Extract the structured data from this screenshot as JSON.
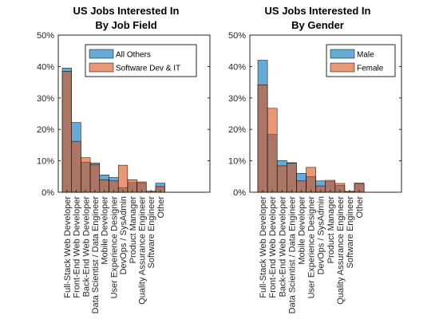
{
  "chart_data": [
    {
      "type": "bar",
      "title_line1": "US Jobs Interested In",
      "title_line2": "By Job Field",
      "categories": [
        "Full-Stack Web Developer",
        "Front-End Web Developer",
        "Back-End Web Developer",
        "Data Scientist / Data Engineer",
        "Mobile Developer",
        "User Experience Designer",
        "DevOps / SysAdmin",
        "Product Manager",
        "Quality Assurance Engineer",
        "Software Engineer",
        "Other"
      ],
      "ytick_labels": [
        "0%",
        "10%",
        "20%",
        "30%",
        "40%",
        "50%"
      ],
      "yticks": [
        0,
        10,
        20,
        30,
        40,
        50
      ],
      "ylim": [
        0,
        50
      ],
      "legend_position": "top-right",
      "series": [
        {
          "name": "All Others",
          "color": "#0072BD",
          "values": [
            39.5,
            22.2,
            9.6,
            9.3,
            5.5,
            4.7,
            1.5,
            3.1,
            3.0,
            0.3,
            2.9
          ]
        },
        {
          "name": "Software Dev & IT",
          "color": "#D95319",
          "values": [
            38.5,
            16.2,
            11.0,
            8.8,
            4.0,
            3.6,
            8.6,
            4.0,
            3.3,
            0.3,
            1.8
          ]
        }
      ]
    },
    {
      "type": "bar",
      "title_line1": "US Jobs Interested In",
      "title_line2": "By Gender",
      "categories": [
        "Full-Stack Web Developer",
        "Front-End Web Developer",
        "Back-End Web Developer",
        "Data Scientist / Data Engineer",
        "Mobile Developer",
        "User Experience Designer",
        "DevOps / SysAdmin",
        "Product Manager",
        "Quality Assurance Engineer",
        "Software Engineer",
        "Other"
      ],
      "ytick_labels": [
        "0%",
        "10%",
        "20%",
        "30%",
        "40%",
        "50%"
      ],
      "yticks": [
        0,
        10,
        20,
        30,
        40,
        50
      ],
      "ylim": [
        0,
        50
      ],
      "legend_position": "top-right",
      "series": [
        {
          "name": "Male",
          "color": "#0072BD",
          "values": [
            42.0,
            18.5,
            10.1,
            9.4,
            6.0,
            5.0,
            3.6,
            3.4,
            2.2,
            0.2,
            2.9
          ]
        },
        {
          "name": "Female",
          "color": "#D95319",
          "values": [
            34.2,
            26.7,
            8.4,
            9.2,
            3.6,
            7.9,
            2.0,
            3.8,
            2.8,
            0.3,
            2.8
          ]
        }
      ]
    }
  ]
}
